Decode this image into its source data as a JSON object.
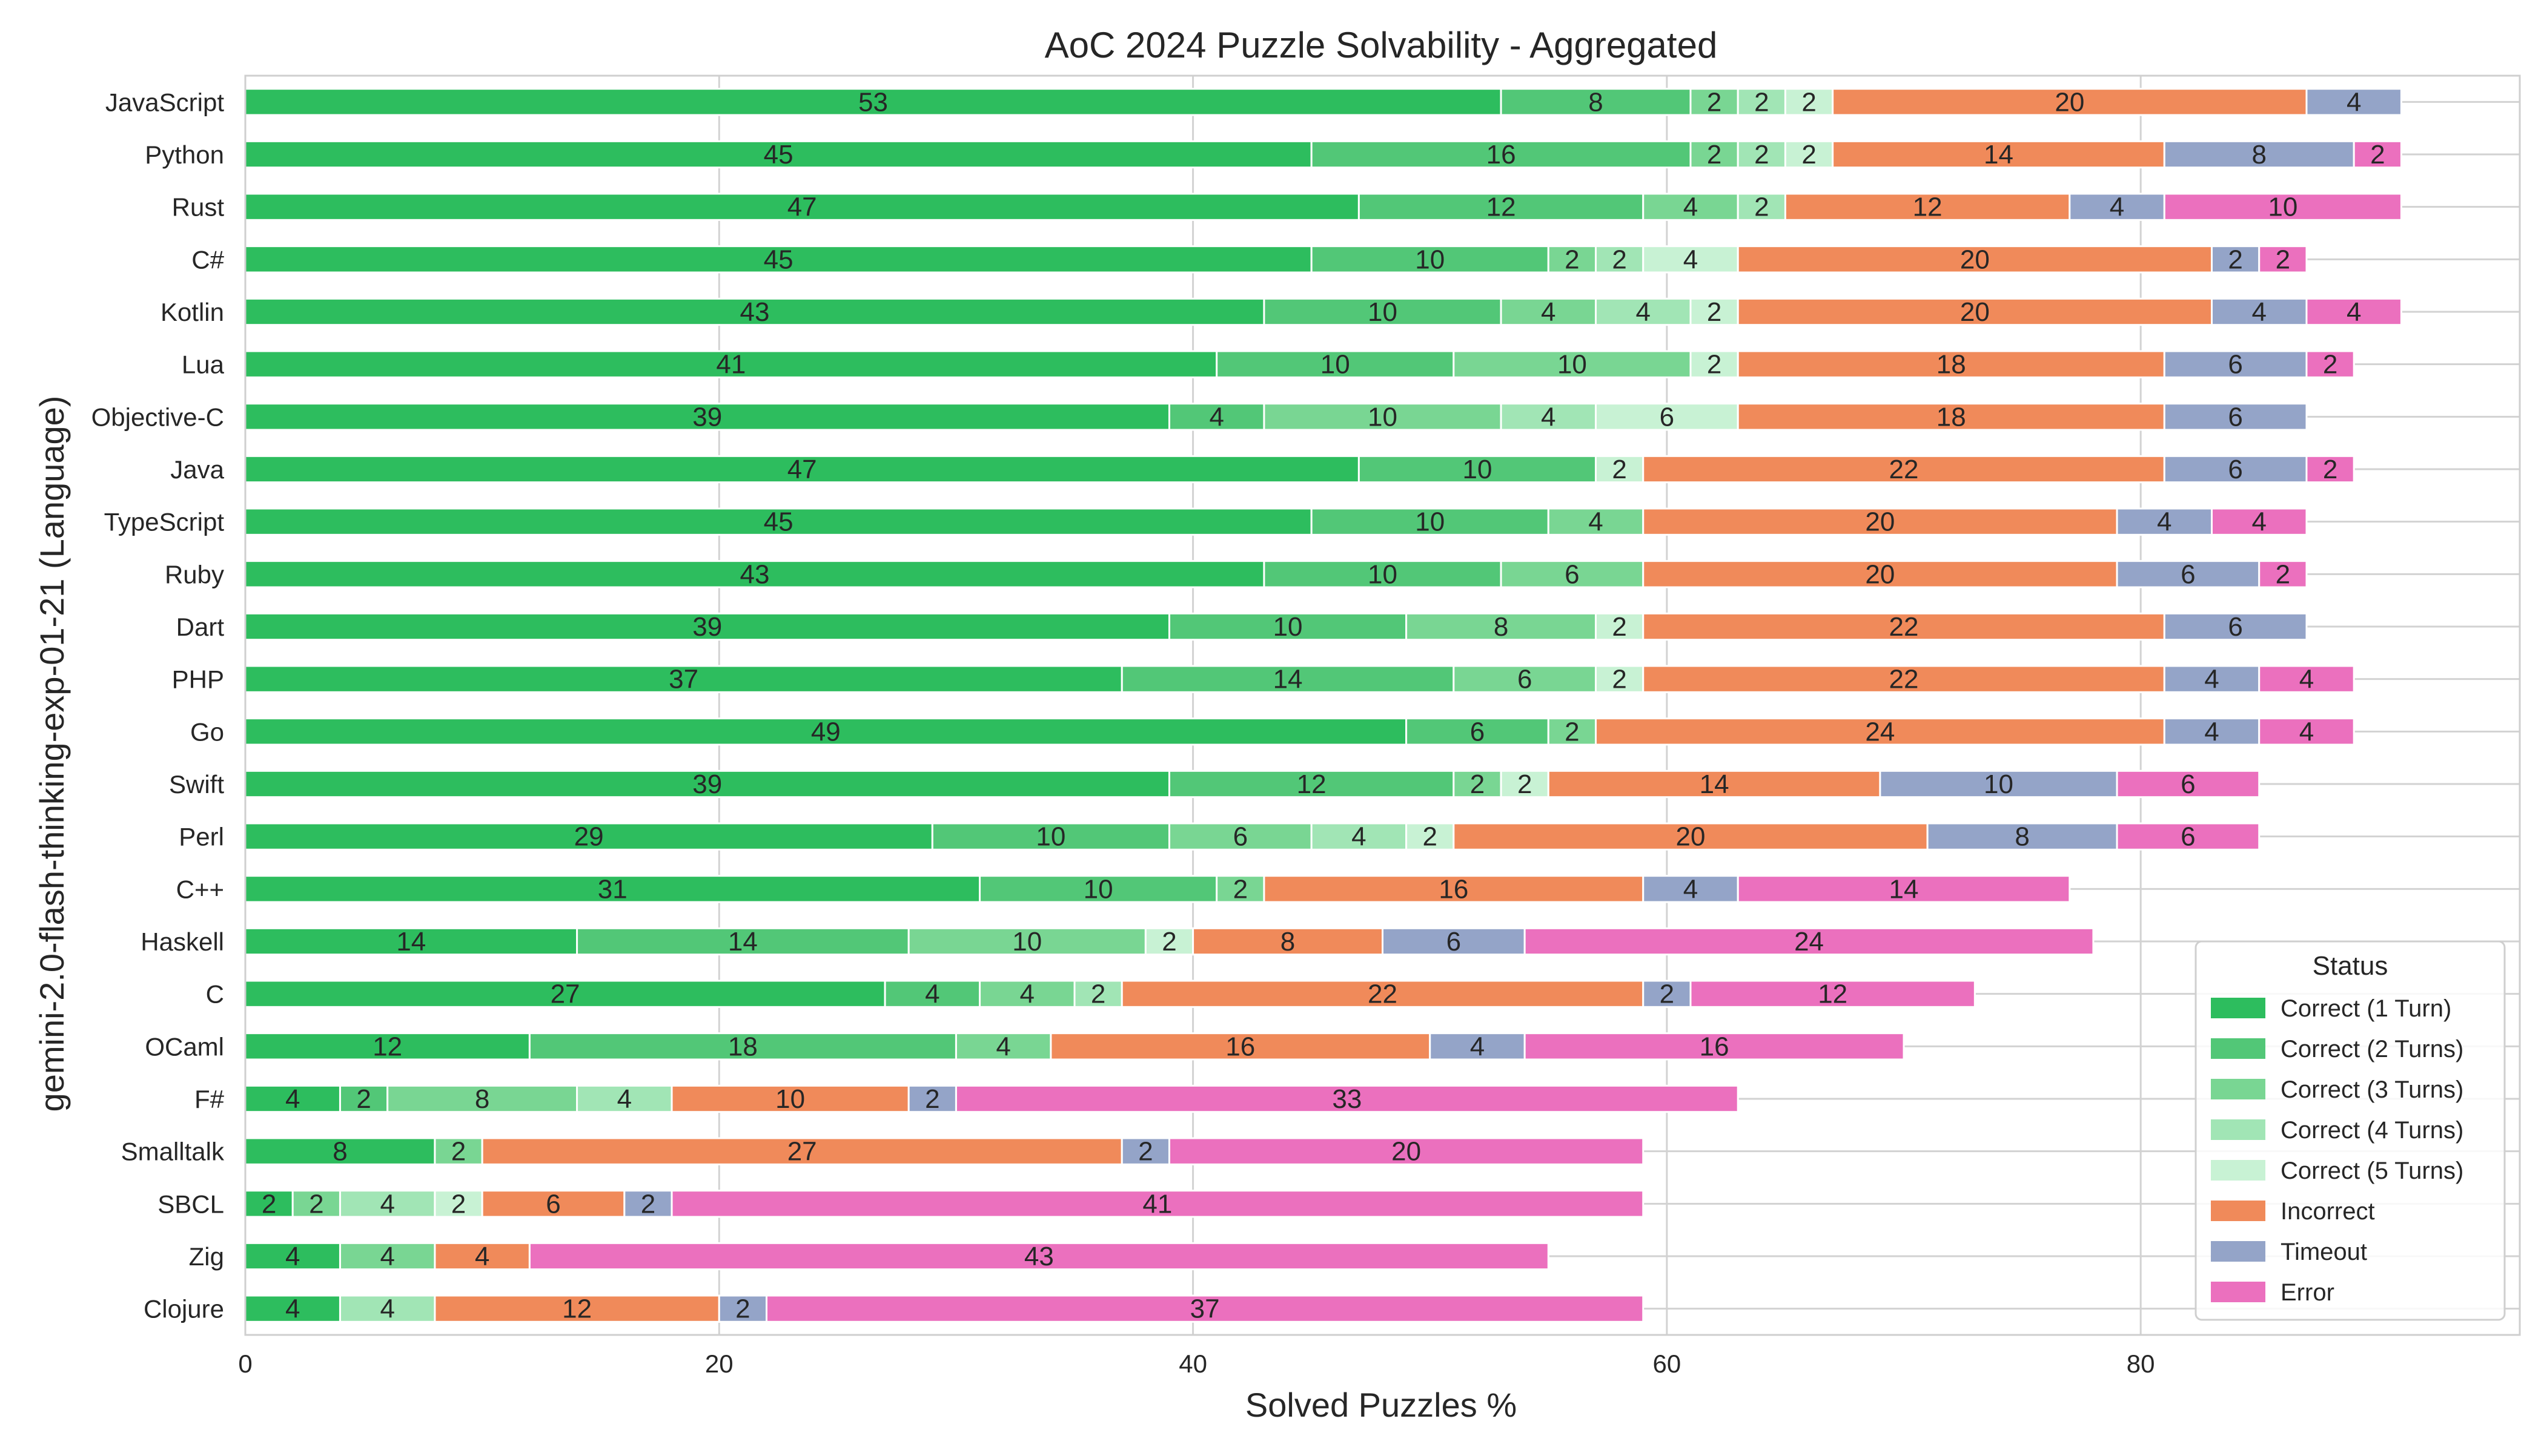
{
  "chart_data": {
    "type": "bar",
    "orientation": "horizontal",
    "stacked": true,
    "title": "AoC 2024 Puzzle Solvability - Aggregated",
    "xlabel": "Solved Puzzles %",
    "ylabel": "gemini-2.0-flash-thinking-exp-01-21 (Language)",
    "xlim": [
      0,
      96
    ],
    "xticks": [
      0,
      20,
      40,
      60,
      80
    ],
    "grid": true,
    "categories": [
      "JavaScript",
      "Python",
      "Rust",
      "C#",
      "Kotlin",
      "Lua",
      "Objective-C",
      "Java",
      "TypeScript",
      "Ruby",
      "Dart",
      "PHP",
      "Go",
      "Swift",
      "Perl",
      "C++",
      "Haskell",
      "C",
      "OCaml",
      "F#",
      "Smalltalk",
      "SBCL",
      "Zig",
      "Clojure"
    ],
    "legend": {
      "title": "Status",
      "placement": "lower-right"
    },
    "series": [
      {
        "name": "Correct (1 Turn)",
        "color": "#2dbd5e",
        "values": [
          53,
          45,
          47,
          45,
          43,
          41,
          39,
          47,
          45,
          43,
          39,
          37,
          49,
          39,
          29,
          31,
          14,
          27,
          12,
          4,
          8,
          2,
          4,
          4
        ]
      },
      {
        "name": "Correct (2 Turns)",
        "color": "#52c777",
        "values": [
          8,
          16,
          12,
          10,
          10,
          10,
          4,
          10,
          10,
          10,
          10,
          14,
          6,
          12,
          10,
          10,
          14,
          4,
          18,
          2,
          0,
          0,
          0,
          0
        ]
      },
      {
        "name": "Correct (3 Turns)",
        "color": "#79d693",
        "values": [
          2,
          2,
          4,
          2,
          4,
          10,
          10,
          0,
          4,
          6,
          8,
          6,
          2,
          2,
          6,
          2,
          10,
          4,
          4,
          8,
          2,
          2,
          4,
          0
        ]
      },
      {
        "name": "Correct (4 Turns)",
        "color": "#a1e5b5",
        "values": [
          2,
          2,
          2,
          2,
          4,
          0,
          4,
          0,
          0,
          0,
          0,
          0,
          0,
          0,
          4,
          0,
          0,
          2,
          0,
          4,
          0,
          4,
          0,
          4
        ]
      },
      {
        "name": "Correct (5 Turns)",
        "color": "#c8f2d4",
        "values": [
          2,
          2,
          0,
          4,
          2,
          2,
          6,
          2,
          0,
          0,
          2,
          2,
          0,
          2,
          2,
          0,
          2,
          0,
          0,
          0,
          0,
          2,
          0,
          0
        ]
      },
      {
        "name": "Incorrect",
        "color": "#f08a5a",
        "values": [
          20,
          14,
          12,
          20,
          20,
          18,
          18,
          22,
          20,
          20,
          22,
          22,
          24,
          14,
          20,
          16,
          8,
          22,
          16,
          10,
          27,
          6,
          4,
          12
        ]
      },
      {
        "name": "Timeout",
        "color": "#94a4c8",
        "values": [
          4,
          8,
          4,
          2,
          4,
          6,
          6,
          6,
          4,
          6,
          6,
          4,
          4,
          10,
          8,
          4,
          6,
          2,
          4,
          2,
          2,
          2,
          0,
          2
        ]
      },
      {
        "name": "Error",
        "color": "#eb70be",
        "values": [
          0,
          2,
          10,
          2,
          4,
          2,
          0,
          2,
          4,
          2,
          0,
          4,
          4,
          6,
          6,
          14,
          24,
          12,
          16,
          33,
          20,
          41,
          43,
          37
        ]
      }
    ]
  }
}
